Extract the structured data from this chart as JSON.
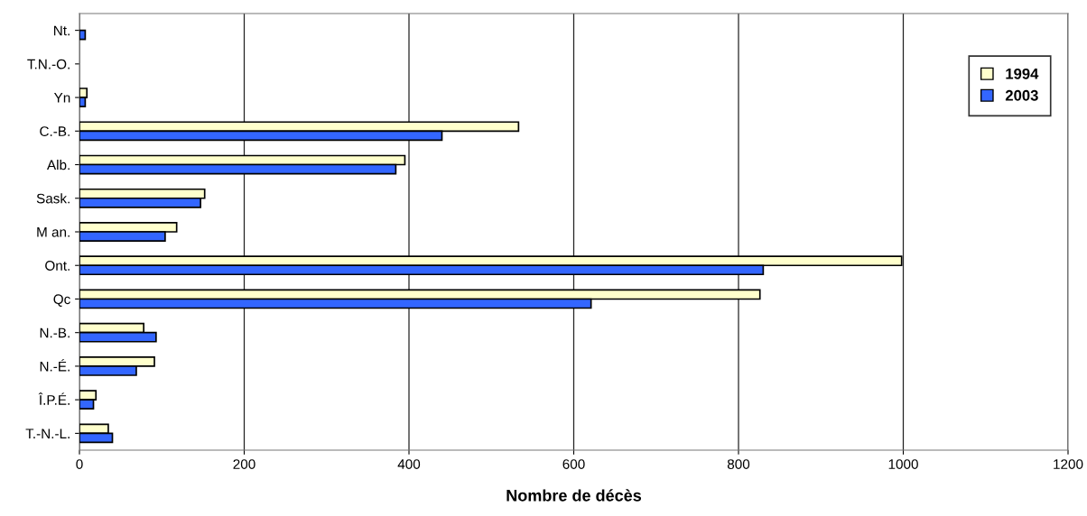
{
  "chart_data": {
    "type": "bar",
    "orientation": "horizontal",
    "xlabel": "Nombre de décès",
    "categories": [
      "Nt.",
      "T.N.-O.",
      "Yn",
      "C.-B.",
      "Alb.",
      "Sask.",
      "M an.",
      "Ont.",
      "Qc",
      "N.-B.",
      "N.-É.",
      "Î.P.É.",
      "T.-N.-L."
    ],
    "series": [
      {
        "name": "1994",
        "color": "#ffffcc",
        "values": [
          null,
          null,
          9,
          533,
          395,
          152,
          118,
          998,
          826,
          78,
          91,
          20,
          35
        ]
      },
      {
        "name": "2003",
        "color": "#3366ff",
        "values": [
          7,
          null,
          7,
          440,
          384,
          147,
          104,
          830,
          621,
          93,
          69,
          17,
          40
        ]
      }
    ],
    "xlim": [
      0,
      1200
    ],
    "xticks": [
      0,
      200,
      400,
      600,
      800,
      1000,
      1200
    ],
    "grid": "x",
    "legend": "top right"
  }
}
